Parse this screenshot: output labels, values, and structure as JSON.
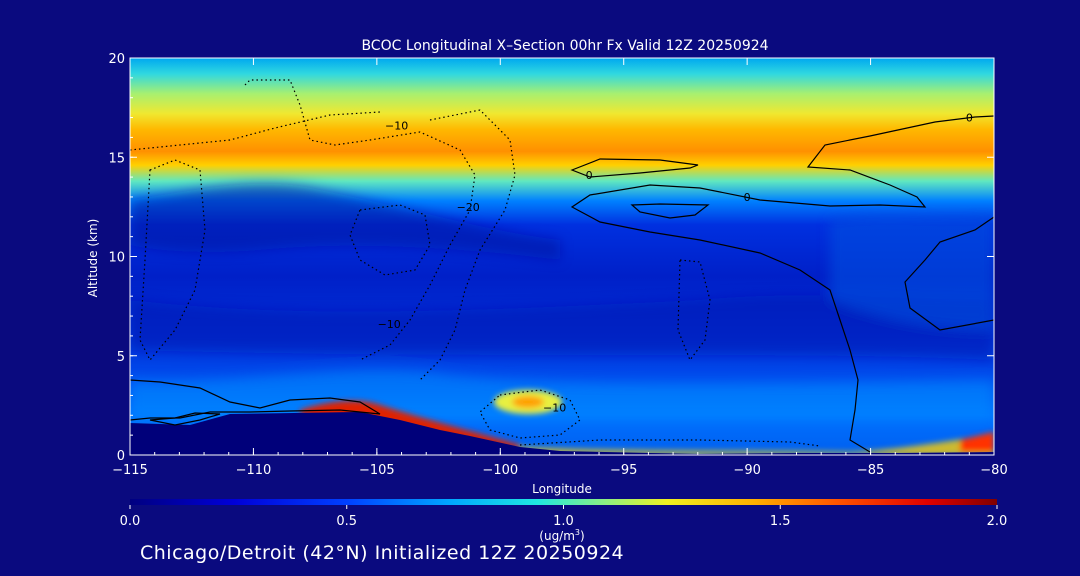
{
  "chart_data": {
    "type": "heatmap",
    "title": "BCOC Longitudinal X–Section 00hr  Fx Valid 12Z 20250924",
    "xlabel": "Longitude",
    "ylabel": "Altitude (km)",
    "xlim": [
      -115,
      -80
    ],
    "ylim": [
      0,
      20
    ],
    "x_ticks": [
      -115,
      -110,
      -105,
      -100,
      -95,
      -90,
      -85,
      -80
    ],
    "x_tick_labels": [
      "−115",
      "−110",
      "−105",
      "−100",
      "−95",
      "−90",
      "−85",
      "−80"
    ],
    "y_ticks": [
      0,
      5,
      10,
      15,
      20
    ],
    "y_tick_labels": [
      "0",
      "5",
      "10",
      "15",
      "20"
    ],
    "colorbar": {
      "min": 0.0,
      "max": 2.0,
      "ticks": [
        0.0,
        0.5,
        1.0,
        1.5,
        2.0
      ],
      "tick_labels": [
        "0.0",
        "0.5",
        "1.0",
        "1.5",
        "2.0"
      ],
      "unit_label": "(ug/m",
      "unit_superscript": "3",
      "unit_close": ")"
    },
    "contour_labels": [
      {
        "lon": -104.2,
        "alt": 16.6,
        "text": "−10"
      },
      {
        "lon": -101.3,
        "alt": 12.5,
        "text": "−20"
      },
      {
        "lon": -104.5,
        "alt": 6.6,
        "text": "−10"
      },
      {
        "lon": -97.8,
        "alt": 2.4,
        "text": "−10"
      },
      {
        "lon": -96.4,
        "alt": 14.1,
        "text": "0"
      },
      {
        "lon": -90.0,
        "alt": 13.0,
        "text": "0"
      },
      {
        "lon": -81.0,
        "alt": 17.0,
        "text": "0"
      }
    ],
    "grid": false
  },
  "footer": {
    "text": "Chicago/Detroit (42°N) Initialized 12Z 20250924"
  }
}
